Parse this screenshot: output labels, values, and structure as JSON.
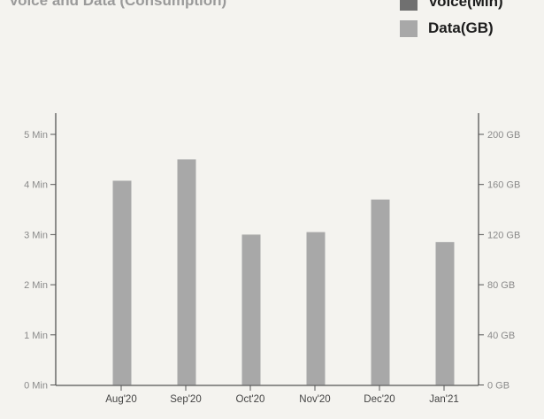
{
  "header_fragment": "Voice and Data (Consumption)",
  "legend": [
    {
      "label": "Voice(Min)",
      "color": "#707070"
    },
    {
      "label": "Data(GB)",
      "color": "#a8a8a8"
    }
  ],
  "chart_data": {
    "type": "bar",
    "categories": [
      "Aug'20",
      "Sep'20",
      "Oct'20",
      "Nov'20",
      "Dec'20",
      "Jan'21"
    ],
    "series": [
      {
        "name": "Voice(Min)",
        "axis": "left",
        "color": "#707070",
        "values": [
          0,
          0,
          0,
          0,
          0,
          0
        ]
      },
      {
        "name": "Data(GB)",
        "axis": "right",
        "color": "#a8a8a8",
        "values": [
          163,
          180,
          120,
          122,
          148,
          114
        ]
      }
    ],
    "y_left": {
      "ticks": [
        "0 Min",
        "1 Min",
        "2 Min",
        "3 Min",
        "4 Min",
        "5 Min"
      ],
      "range": [
        0,
        5
      ]
    },
    "y_right": {
      "ticks": [
        "0 GB",
        "40 GB",
        "80 GB",
        "120 GB",
        "160 GB",
        "200 GB"
      ],
      "range": [
        0,
        200
      ]
    },
    "grid": false,
    "legend_position": "top-right"
  }
}
